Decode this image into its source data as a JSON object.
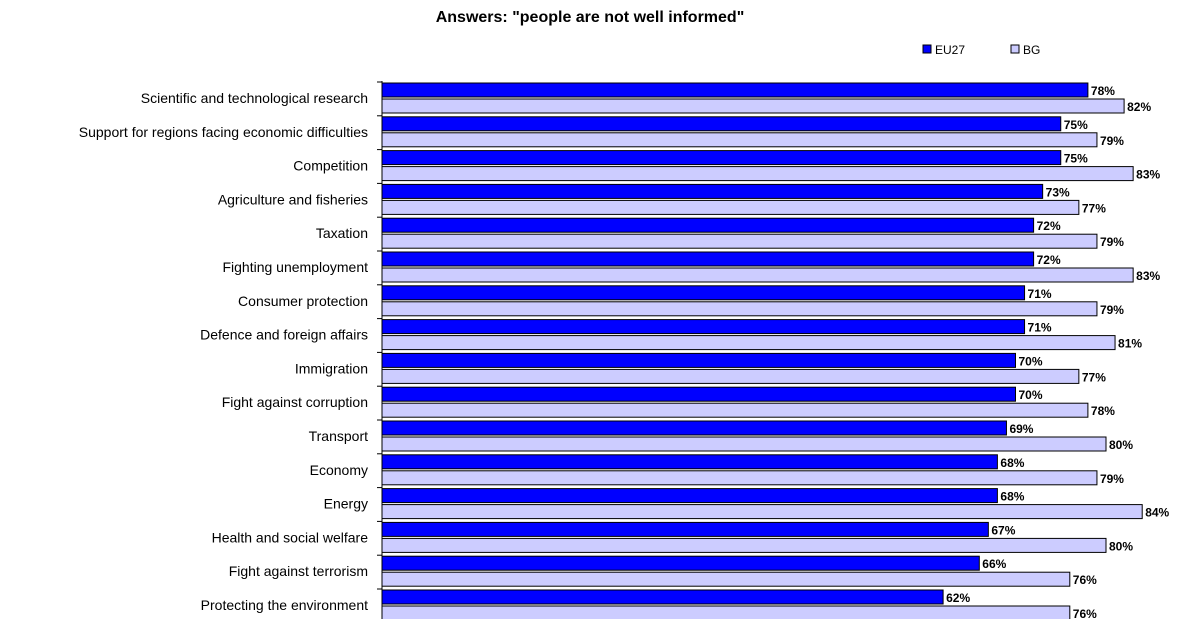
{
  "chart_data": {
    "type": "bar",
    "orientation": "horizontal",
    "title": "Answers: \"people are not well informed\"",
    "legend_position": "top-right",
    "value_suffix": "%",
    "xlim": [
      0,
      100
    ],
    "grid": false,
    "categories": [
      "Scientific and technological research",
      "Support for regions facing economic difficulties",
      "Competition",
      "Agriculture and fisheries",
      "Taxation",
      "Fighting unemployment",
      "Consumer protection",
      "Defence and foreign affairs",
      "Immigration",
      "Fight against corruption",
      "Transport",
      "Economy",
      "Energy",
      "Health and social welfare",
      "Fight against terrorism",
      "Protecting the environment"
    ],
    "series": [
      {
        "name": "EU27",
        "color": "#0000ff",
        "values": [
          78,
          75,
          75,
          73,
          72,
          72,
          71,
          71,
          70,
          70,
          69,
          68,
          68,
          67,
          66,
          62
        ]
      },
      {
        "name": "BG",
        "color": "#ccccff",
        "values": [
          82,
          79,
          83,
          77,
          79,
          83,
          79,
          81,
          77,
          78,
          80,
          79,
          84,
          80,
          76,
          76
        ]
      }
    ]
  }
}
